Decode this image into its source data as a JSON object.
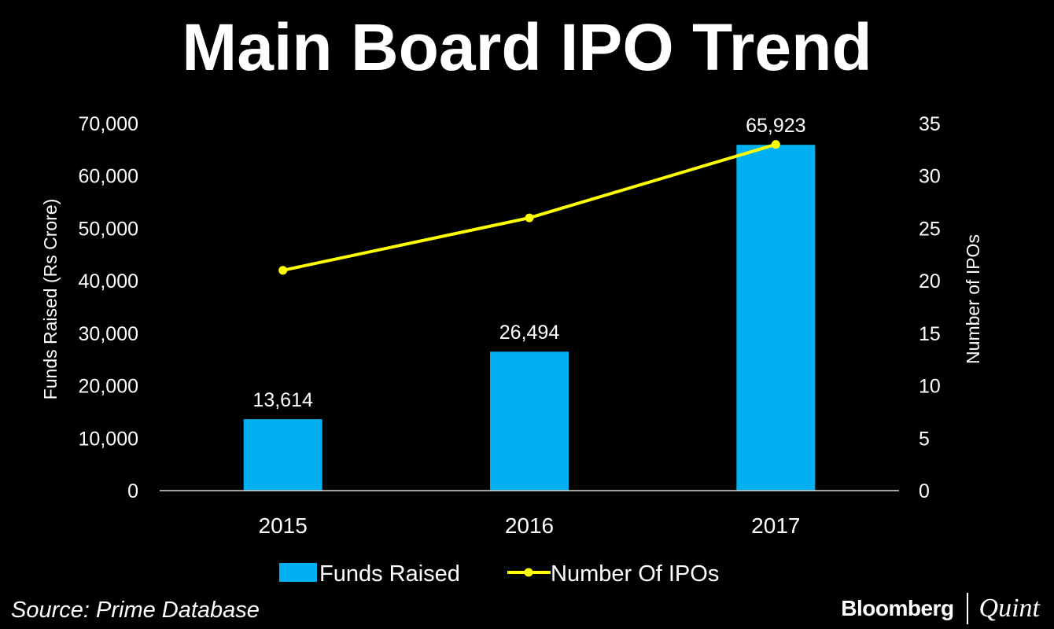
{
  "page": {
    "title": "Main Board IPO Trend",
    "source": "Source: Prime Database",
    "brand": {
      "name": "Bloomberg",
      "suffix": "Quint"
    }
  },
  "colors": {
    "background": "#000000",
    "bar": "#00b0f0",
    "line": "#ffff00",
    "text": "#ffffff",
    "axis": "#d9d9d9"
  },
  "chart_data": {
    "type": "bar",
    "title": "Main Board IPO Trend",
    "categories": [
      "2015",
      "2016",
      "2017"
    ],
    "series": [
      {
        "name": "Funds Raised",
        "type": "bar",
        "axis": "left",
        "values": [
          13614,
          26494,
          65923
        ],
        "labels": [
          "13,614",
          "26,494",
          "65,923"
        ]
      },
      {
        "name": "Number Of IPOs",
        "type": "line",
        "axis": "right",
        "values": [
          21,
          26,
          33
        ]
      }
    ],
    "y_left": {
      "label": "Funds Raised (Rs Crore)",
      "range": [
        0,
        70000
      ],
      "ticks": [
        "0",
        "10,000",
        "20,000",
        "30,000",
        "40,000",
        "50,000",
        "60,000",
        "70,000"
      ]
    },
    "y_right": {
      "label": "Number of IPOs",
      "range": [
        0,
        35
      ],
      "ticks": [
        "0",
        "5",
        "10",
        "15",
        "20",
        "25",
        "30",
        "35"
      ]
    },
    "grid": false,
    "legend": {
      "position": "bottom",
      "entries": [
        "Funds Raised",
        "Number Of IPOs"
      ]
    }
  }
}
